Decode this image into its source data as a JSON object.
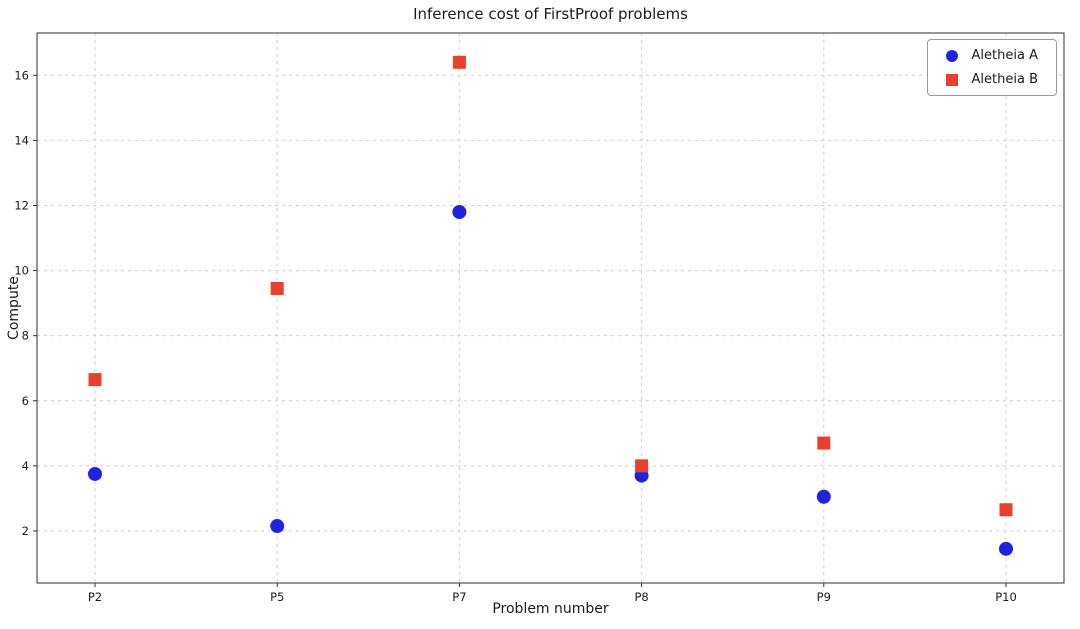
{
  "chart_data": {
    "type": "scatter",
    "title": "Inference cost of FirstProof problems",
    "xlabel": "Problem number",
    "ylabel": "Compute",
    "categories": [
      "P2",
      "P5",
      "P7",
      "P8",
      "P9",
      "P10"
    ],
    "series": [
      {
        "name": "Aletheia A",
        "marker": "circle",
        "color": "#2222dd",
        "values": [
          3.75,
          2.15,
          11.8,
          3.7,
          3.05,
          1.45
        ]
      },
      {
        "name": "Aletheia B",
        "marker": "square",
        "color": "#e8402e",
        "values": [
          6.65,
          9.45,
          16.4,
          4.0,
          4.7,
          2.65
        ]
      }
    ],
    "ylim": [
      0.4,
      17.3
    ],
    "yticks": [
      2,
      4,
      6,
      8,
      10,
      12,
      14,
      16
    ],
    "grid": true,
    "grid_style": "dashed",
    "grid_color": "#cfcfcf",
    "legend_position": "upper right"
  }
}
